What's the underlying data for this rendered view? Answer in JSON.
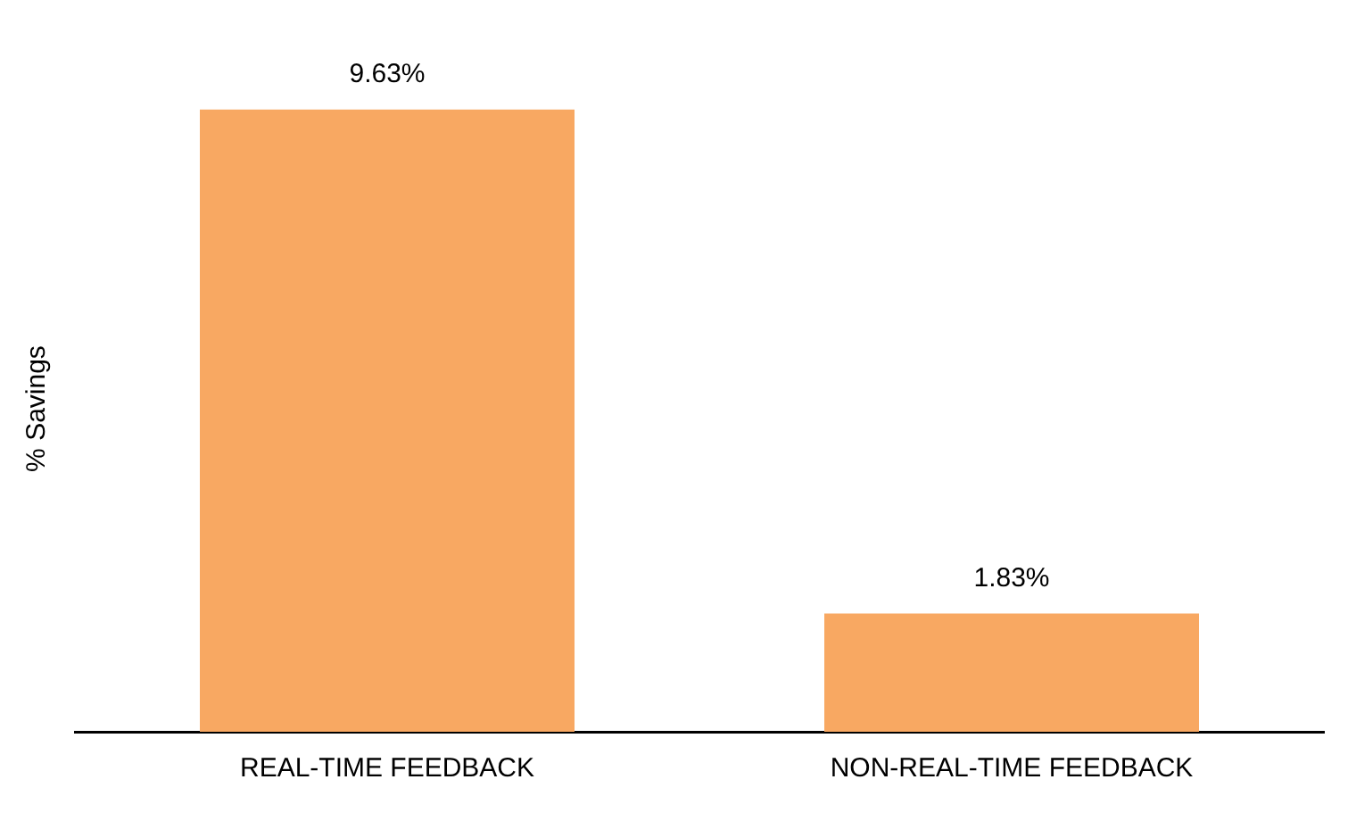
{
  "chart_data": {
    "type": "bar",
    "ylabel": "% Savings",
    "categories": [
      "REAL-TIME FEEDBACK",
      "NON-REAL-TIME FEEDBACK"
    ],
    "values": [
      9.63,
      1.83
    ],
    "value_labels": [
      "9.63%",
      "1.83%"
    ],
    "color": "#f8a862",
    "grid": false,
    "legend": false
  }
}
